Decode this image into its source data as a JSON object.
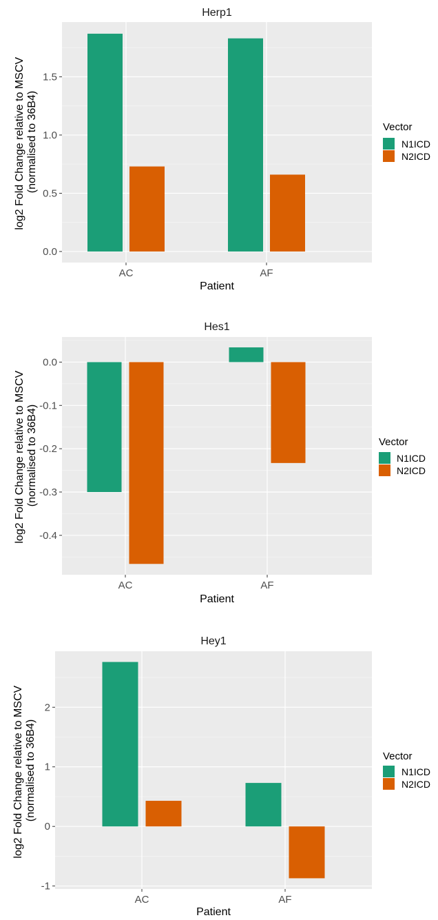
{
  "chart_data": [
    {
      "type": "bar",
      "title": "Herp1",
      "xlabel": "Patient",
      "ylabel_lines": [
        "log2 Fold Change relative to MSCV",
        "(normalised to 36B4)"
      ],
      "categories": [
        "AC",
        "AF"
      ],
      "series": [
        {
          "name": "N1ICD",
          "color": "#1b9e77",
          "values": [
            1.87,
            1.83
          ]
        },
        {
          "name": "N2ICD",
          "color": "#d95f02",
          "values": [
            0.73,
            0.66
          ]
        }
      ],
      "ylim": [
        -0.095,
        1.97
      ],
      "yticks": [
        0.0,
        0.5,
        1.0,
        1.5
      ],
      "ytick_labels": [
        "0.0",
        "0.5",
        "1.0",
        "1.5"
      ],
      "legend": {
        "title": "Vector",
        "position": "right"
      },
      "grid": true
    },
    {
      "type": "bar",
      "title": "Hes1",
      "xlabel": "Patient",
      "ylabel_lines": [
        "log2 Fold Change relative to MSCV",
        "(normalised to 36B4)"
      ],
      "categories": [
        "AC",
        "AF"
      ],
      "series": [
        {
          "name": "N1ICD",
          "color": "#1b9e77",
          "values": [
            -0.3,
            0.034
          ]
        },
        {
          "name": "N2ICD",
          "color": "#d95f02",
          "values": [
            -0.466,
            -0.233
          ]
        }
      ],
      "ylim": [
        -0.491,
        0.058
      ],
      "yticks": [
        0.0,
        -0.1,
        -0.2,
        -0.3,
        -0.4
      ],
      "ytick_labels": [
        "0.0",
        "-0.1",
        "-0.2",
        "-0.3",
        "-0.4"
      ],
      "legend": {
        "title": "Vector",
        "position": "right"
      },
      "grid": true
    },
    {
      "type": "bar",
      "title": "Hey1",
      "xlabel": "Patient",
      "ylabel_lines": [
        "log2 Fold Change relative to MSCV",
        "(normalised to 36B4)"
      ],
      "categories": [
        "AC",
        "AF"
      ],
      "series": [
        {
          "name": "N1ICD",
          "color": "#1b9e77",
          "values": [
            2.76,
            0.73
          ]
        },
        {
          "name": "N2ICD",
          "color": "#d95f02",
          "values": [
            0.43,
            -0.87
          ]
        }
      ],
      "ylim": [
        -1.05,
        2.94
      ],
      "yticks": [
        -1,
        0,
        1,
        2
      ],
      "ytick_labels": [
        "-1",
        "0",
        "1",
        "2"
      ],
      "legend": {
        "title": "Vector",
        "position": "right"
      },
      "grid": true
    }
  ]
}
